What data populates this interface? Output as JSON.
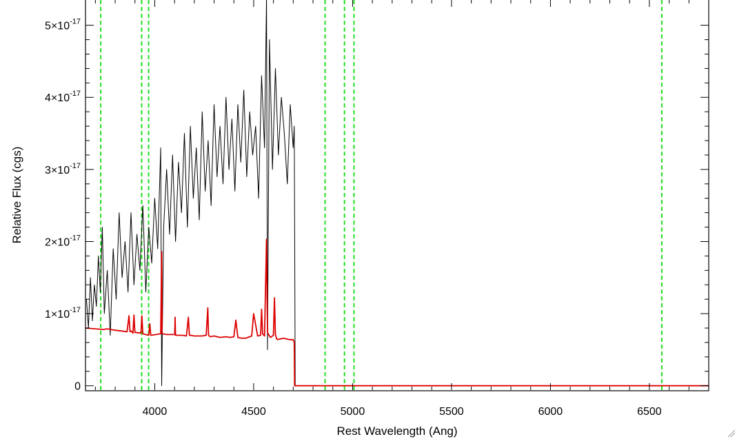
{
  "chart_data": {
    "type": "line",
    "xlabel": "Rest Wavelength (Ang)",
    "ylabel": "Relative Flux (cgs)",
    "xlim": [
      3650,
      6800
    ],
    "ylim": [
      -6e-19,
      5.35e-17
    ],
    "x_ticks": [
      {
        "value": 4000,
        "label": "4000"
      },
      {
        "value": 4500,
        "label": "4500"
      },
      {
        "value": 5000,
        "label": "5000"
      },
      {
        "value": 5500,
        "label": "5500"
      },
      {
        "value": 6000,
        "label": "6000"
      },
      {
        "value": 6500,
        "label": "6500"
      }
    ],
    "y_ticks": [
      {
        "value": 0,
        "mantissa": "0",
        "exponent": ""
      },
      {
        "value": 1e-17,
        "mantissa": "1×10",
        "exponent": "-17"
      },
      {
        "value": 2e-17,
        "mantissa": "2×10",
        "exponent": "-17"
      },
      {
        "value": 3e-17,
        "mantissa": "3×10",
        "exponent": "-17"
      },
      {
        "value": 4e-17,
        "mantissa": "4×10",
        "exponent": "-17"
      },
      {
        "value": 5e-17,
        "mantissa": "5×10",
        "exponent": "-17"
      }
    ],
    "series": [
      {
        "color": "#000000",
        "x": [
          3655,
          3665,
          3675,
          3685,
          3695,
          3705,
          3715,
          3725,
          3735,
          3745,
          3760,
          3775,
          3790,
          3805,
          3820,
          3835,
          3850,
          3865,
          3880,
          3895,
          3910,
          3925,
          3940,
          3955,
          3970,
          3985,
          4000,
          4015,
          4030,
          4035,
          4045,
          4060,
          4075,
          4090,
          4105,
          4120,
          4135,
          4150,
          4165,
          4180,
          4195,
          4210,
          4225,
          4240,
          4255,
          4270,
          4285,
          4300,
          4315,
          4330,
          4345,
          4360,
          4375,
          4390,
          4405,
          4420,
          4435,
          4450,
          4465,
          4480,
          4495,
          4510,
          4525,
          4540,
          4555,
          4565,
          4570,
          4580,
          4595,
          4610,
          4625,
          4640,
          4655,
          4670,
          4685,
          4700,
          4705,
          4710,
          4800,
          5000,
          5500,
          6000,
          6500,
          6800
        ],
        "y": [
          1.2e-17,
          8e-18,
          1.5e-17,
          9e-18,
          1.4e-17,
          1.1e-17,
          1.8e-17,
          1.3e-17,
          2.2e-17,
          1e-17,
          1.6e-17,
          7e-18,
          1.9e-17,
          1.2e-17,
          2.4e-17,
          1.5e-17,
          2e-17,
          1.3e-17,
          2.4e-17,
          1.4e-17,
          2.1e-17,
          1.6e-17,
          2.5e-17,
          1.3e-17,
          2.2e-17,
          1.7e-17,
          2.6e-17,
          1.9e-17,
          3.3e-17,
          0.0,
          2.2e-17,
          3e-17,
          2.1e-17,
          3.2e-17,
          2e-17,
          3.1e-17,
          2.4e-17,
          3.5e-17,
          2.2e-17,
          3.6e-17,
          2.6e-17,
          3.3e-17,
          2.3e-17,
          3.8e-17,
          2.7e-17,
          3.4e-17,
          2.5e-17,
          3.9e-17,
          2.9e-17,
          3.6e-17,
          2.8e-17,
          4e-17,
          3e-17,
          3.7e-17,
          2.7e-17,
          3.9e-17,
          3.1e-17,
          4.1e-17,
          2.9e-17,
          3.8e-17,
          3.2e-17,
          3.6e-17,
          2.6e-17,
          4.3e-17,
          3.3e-17,
          5.4e-17,
          5e-18,
          4.8e-17,
          3e-17,
          4.4e-17,
          3.2e-17,
          4e-17,
          3.5e-17,
          2.8e-17,
          3.9e-17,
          3.3e-17,
          3.6e-17,
          0.0,
          0.0,
          0.0,
          0.0,
          0.0,
          0.0,
          0.0
        ]
      },
      {
        "color": "#dd0000",
        "x": [
          3650,
          3700,
          3740,
          3760,
          3800,
          3830,
          3860,
          3870,
          3875,
          3880,
          3890,
          3895,
          3900,
          3930,
          3935,
          3940,
          3970,
          3975,
          3980,
          4030,
          4035,
          4037,
          4040,
          4060,
          4101,
          4103,
          4105,
          4140,
          4160,
          4170,
          4175,
          4180,
          4200,
          4240,
          4260,
          4268,
          4272,
          4280,
          4300,
          4330,
          4360,
          4380,
          4400,
          4410,
          4420,
          4440,
          4460,
          4490,
          4500,
          4520,
          4535,
          4540,
          4545,
          4555,
          4565,
          4570,
          4575,
          4585,
          4600,
          4605,
          4610,
          4615,
          4620,
          4650,
          4680,
          4700,
          4705,
          4707,
          4800,
          5000,
          5500,
          6000,
          6500,
          6800
        ],
        "y": [
          8e-18,
          7.9e-18,
          7.8e-18,
          7.9e-18,
          7.7e-18,
          7.6e-18,
          7.5e-18,
          9.7e-18,
          7.5e-18,
          7.6e-18,
          7.3e-18,
          9.8e-18,
          7.4e-18,
          7.3e-18,
          9.7e-18,
          7.2e-18,
          7e-18,
          8.6e-18,
          7e-18,
          7.2e-18,
          1.86e-17,
          7.3e-18,
          7.2e-18,
          7.1e-18,
          7.1e-18,
          9.5e-18,
          7e-18,
          7e-18,
          6.9e-18,
          9.5e-18,
          7e-18,
          7e-18,
          6.9e-18,
          6.9e-18,
          7e-18,
          1.08e-17,
          7e-18,
          6.8e-18,
          6.9e-18,
          6.7e-18,
          6.8e-18,
          6.7e-18,
          6.8e-18,
          9.1e-18,
          6.7e-18,
          6.6e-18,
          6.6e-18,
          6.9e-18,
          1e-17,
          6.9e-18,
          7e-18,
          1.06e-17,
          7.2e-18,
          6.9e-18,
          2.03e-17,
          7.4e-18,
          7.1e-18,
          6.7e-18,
          7e-18,
          1.22e-17,
          7.1e-18,
          6.6e-18,
          6.4e-18,
          6.6e-18,
          6.4e-18,
          6.4e-18,
          6e-18,
          0.0,
          0.0,
          0.0,
          0.0,
          0.0,
          0.0,
          0.0
        ]
      }
    ],
    "vlines": {
      "color": "#22dd22",
      "x": [
        3727,
        3934,
        3969,
        4861,
        4959,
        5007,
        6563
      ]
    },
    "grid": false,
    "legend": "none"
  }
}
